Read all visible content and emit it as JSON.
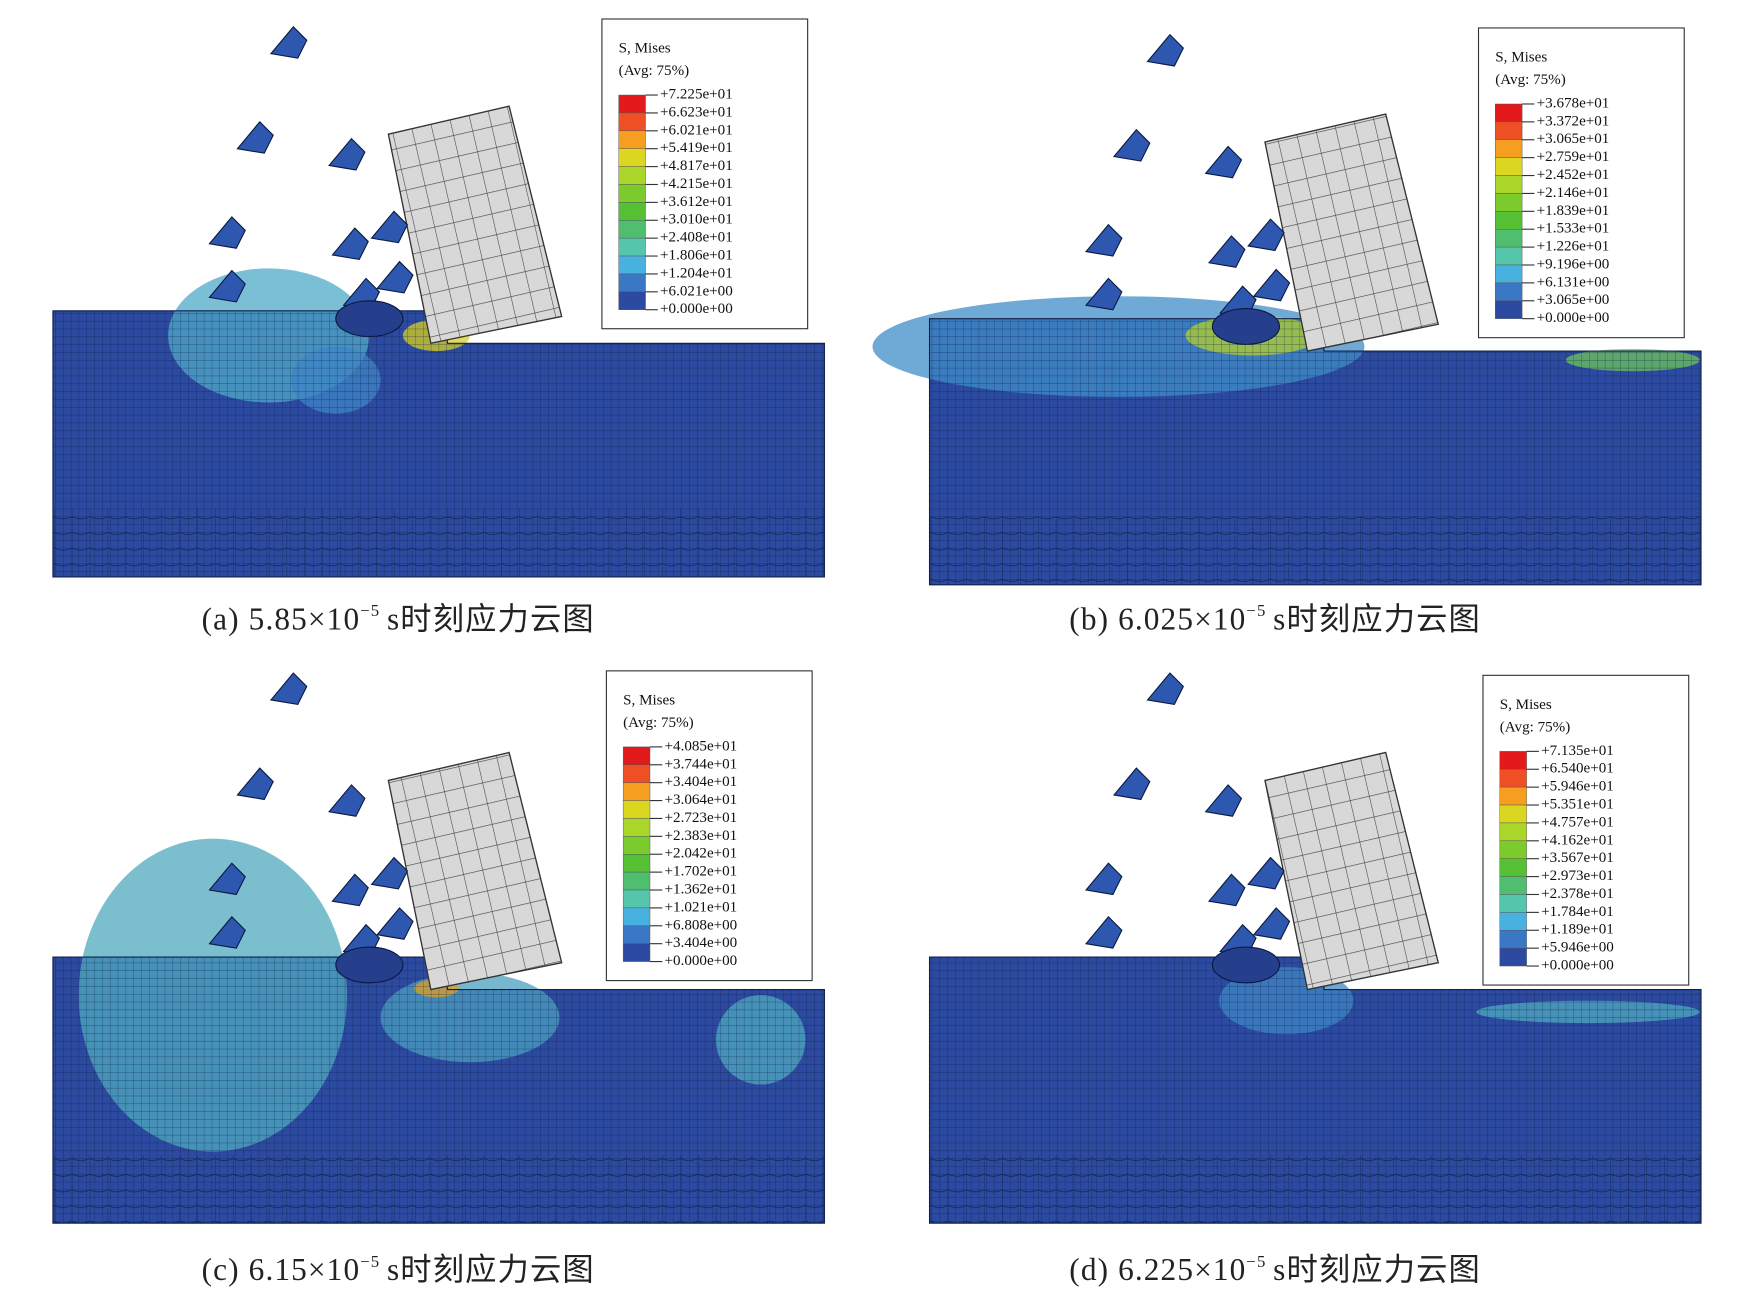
{
  "legend_colors": [
    "#e31a1c",
    "#ef4f24",
    "#f59e1f",
    "#dbd620",
    "#aad629",
    "#7ccb2d",
    "#55c033",
    "#4fbf6f",
    "#55c6ab",
    "#47b1df",
    "#3a78c6",
    "#2d4aa2"
  ],
  "panels": [
    {
      "label": "(a)",
      "value": "5.85×10",
      "exponent": "−5",
      "suffix": "s时刻应力云图",
      "legend": {
        "title": "S, Mises",
        "avg": "(Avg: 75%)",
        "values": [
          "+7.225e+01",
          "+6.623e+01",
          "+6.021e+01",
          "+5.419e+01",
          "+4.817e+01",
          "+4.215e+01",
          "+3.612e+01",
          "+3.010e+01",
          "+2.408e+01",
          "+1.806e+01",
          "+1.204e+01",
          "+6.021e+00",
          "+0.000e+00"
        ]
      }
    },
    {
      "label": "(b)",
      "value": "6.025×10",
      "exponent": "−5",
      "suffix": "s时刻应力云图",
      "legend": {
        "title": "S, Mises",
        "avg": "(Avg: 75%)",
        "values": [
          "+3.678e+01",
          "+3.372e+01",
          "+3.065e+01",
          "+2.759e+01",
          "+2.452e+01",
          "+2.146e+01",
          "+1.839e+01",
          "+1.533e+01",
          "+1.226e+01",
          "+9.196e+00",
          "+6.131e+00",
          "+3.065e+00",
          "+0.000e+00"
        ]
      }
    },
    {
      "label": "(c)",
      "value": "6.15×10",
      "exponent": "−5",
      "suffix": "s时刻应力云图",
      "legend": {
        "title": "S, Mises",
        "avg": "(Avg: 75%)",
        "values": [
          "+4.085e+01",
          "+3.744e+01",
          "+3.404e+01",
          "+3.064e+01",
          "+2.723e+01",
          "+2.383e+01",
          "+2.042e+01",
          "+1.702e+01",
          "+1.362e+01",
          "+1.021e+01",
          "+6.808e+00",
          "+3.404e+00",
          "+0.000e+00"
        ]
      }
    },
    {
      "label": "(d)",
      "value": "6.225×10",
      "exponent": "−5",
      "suffix": "s时刻应力云图",
      "legend": {
        "title": "S, Mises",
        "avg": "(Avg: 75%)",
        "values": [
          "+7.135e+01",
          "+6.540e+01",
          "+5.946e+01",
          "+5.351e+01",
          "+4.757e+01",
          "+4.162e+01",
          "+3.567e+01",
          "+2.973e+01",
          "+2.378e+01",
          "+1.784e+01",
          "+1.189e+01",
          "+5.946e+00",
          "+0.000e+00"
        ]
      }
    }
  ]
}
